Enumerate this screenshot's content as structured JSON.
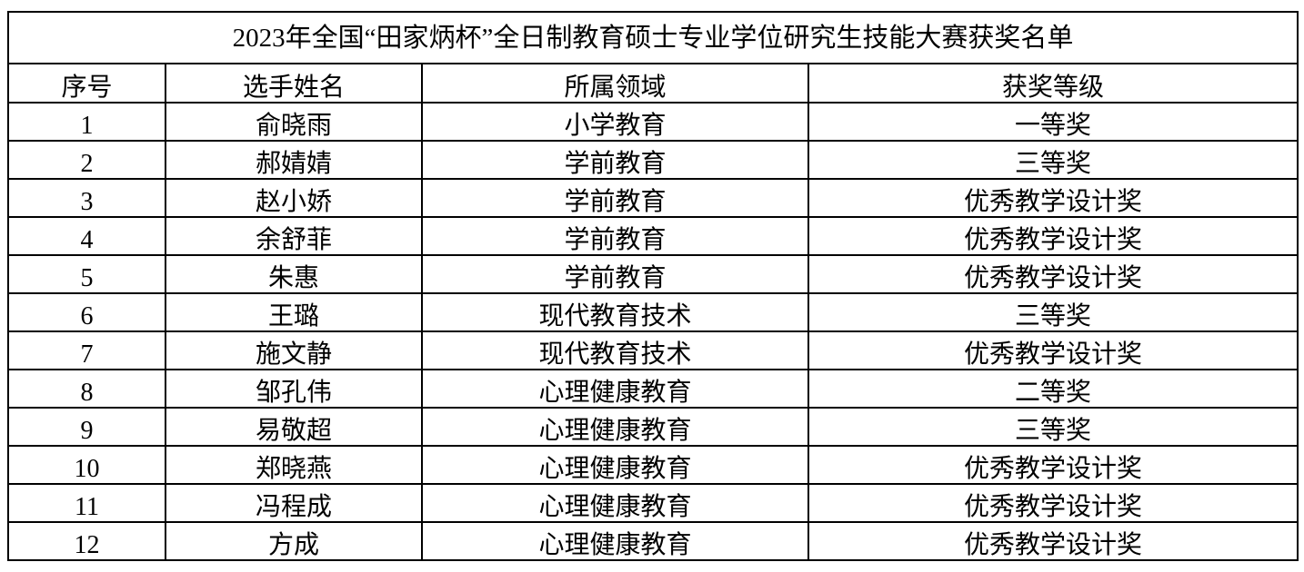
{
  "title": "2023年全国“田家炳杯”全日制教育硕士专业学位研究生技能大赛获奖名单",
  "headers": [
    "序号",
    "选手姓名",
    "所属领域",
    "获奖等级"
  ],
  "rows": [
    [
      "1",
      "俞晓雨",
      "小学教育",
      "一等奖"
    ],
    [
      "2",
      "郝婧婧",
      "学前教育",
      "三等奖"
    ],
    [
      "3",
      "赵小娇",
      "学前教育",
      "优秀教学设计奖"
    ],
    [
      "4",
      "余舒菲",
      "学前教育",
      "优秀教学设计奖"
    ],
    [
      "5",
      "朱惠",
      "学前教育",
      "优秀教学设计奖"
    ],
    [
      "6",
      "王璐",
      "现代教育技术",
      "三等奖"
    ],
    [
      "7",
      "施文静",
      "现代教育技术",
      "优秀教学设计奖"
    ],
    [
      "8",
      "邹孔伟",
      "心理健康教育",
      "二等奖"
    ],
    [
      "9",
      "易敬超",
      "心理健康教育",
      "三等奖"
    ],
    [
      "10",
      "郑晓燕",
      "心理健康教育",
      "优秀教学设计奖"
    ],
    [
      "11",
      "冯程成",
      "心理健康教育",
      "优秀教学设计奖"
    ],
    [
      "12",
      "方成",
      "心理健康教育",
      "优秀教学设计奖"
    ]
  ]
}
